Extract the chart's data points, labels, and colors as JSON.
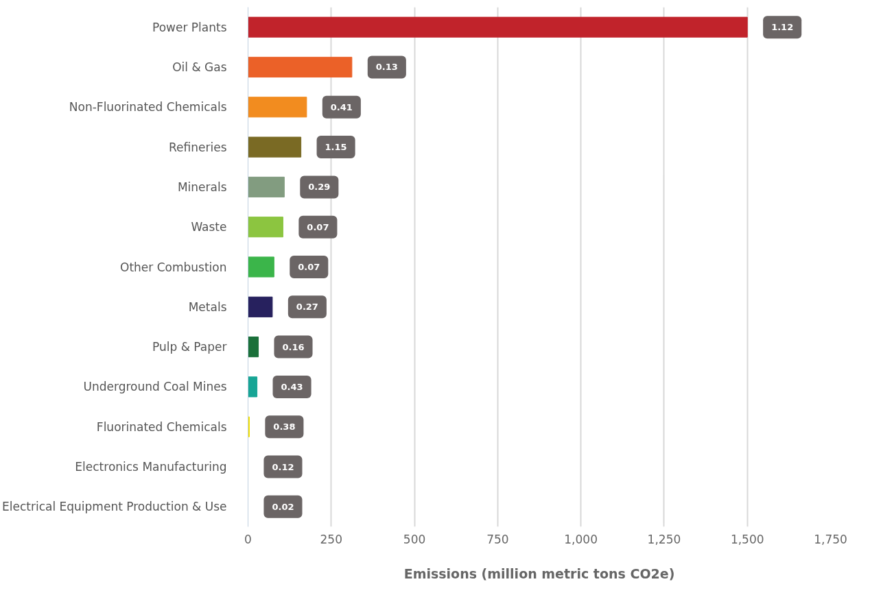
{
  "chart_data": {
    "type": "bar",
    "orientation": "horizontal",
    "xlabel": "Emissions (million metric tons CO2e)",
    "categories": [
      "Power Plants",
      "Oil & Gas",
      "Non-Fluorinated Chemicals",
      "Refineries",
      "Minerals",
      "Waste",
      "Other Combustion",
      "Metals",
      "Pulp & Paper",
      "Underground Coal Mines",
      "Fluorinated Chemicals",
      "Electronics Manufacturing",
      "Electrical Equipment Production & Use"
    ],
    "values": [
      1500,
      312,
      176,
      159,
      109,
      105,
      78,
      73,
      31,
      27,
      4,
      null,
      null
    ],
    "colors": [
      "#c1232b",
      "#eb6128",
      "#f28c1f",
      "#7a6a24",
      "#829c80",
      "#8cc540",
      "#3bb54a",
      "#27215e",
      "#1b703a",
      "#17a595",
      "#f4e001",
      "#2f4f9f",
      "#9c3f8f"
    ],
    "annotations": [
      {
        "text": "1.12",
        "x": 1500,
        "y": "Power Plants"
      },
      {
        "text": "0.13",
        "x": 312,
        "y": "Oil & Gas"
      },
      {
        "text": "0.41",
        "x": 176,
        "y": "Non-Fluorinated Chemicals"
      },
      {
        "text": "1.15",
        "x": 159,
        "y": "Refineries"
      },
      {
        "text": "0.29",
        "x": 109,
        "y": "Minerals"
      },
      {
        "text": "0.07",
        "x": 105,
        "y": "Waste"
      },
      {
        "text": "0.07",
        "x": 78,
        "y": "Other Combustion"
      },
      {
        "text": "0.27",
        "x": 73,
        "y": "Metals"
      },
      {
        "text": "0.16",
        "x": 31,
        "y": "Pulp & Paper"
      },
      {
        "text": "0.43",
        "x": 27,
        "y": "Underground Coal Mines"
      },
      {
        "text": "0.38",
        "x": 4,
        "y": "Fluorinated Chemicals"
      },
      "0.12",
      "0.02"
    ],
    "xlim": [
      0,
      1750
    ],
    "xticks": [
      0,
      {
        "value": 250,
        "label": "250"
      },
      {
        "value": 500,
        "label": "500"
      },
      {
        "value": 750,
        "label": "750"
      },
      {
        "value": 1000,
        "label": "1,000"
      },
      {
        "value": 1250,
        "label": "1,250"
      },
      {
        "value": 1500,
        "label": "1,500"
      },
      {
        "value": 1750,
        "label": "1,750"
      }
    ],
    "grid": "x"
  }
}
